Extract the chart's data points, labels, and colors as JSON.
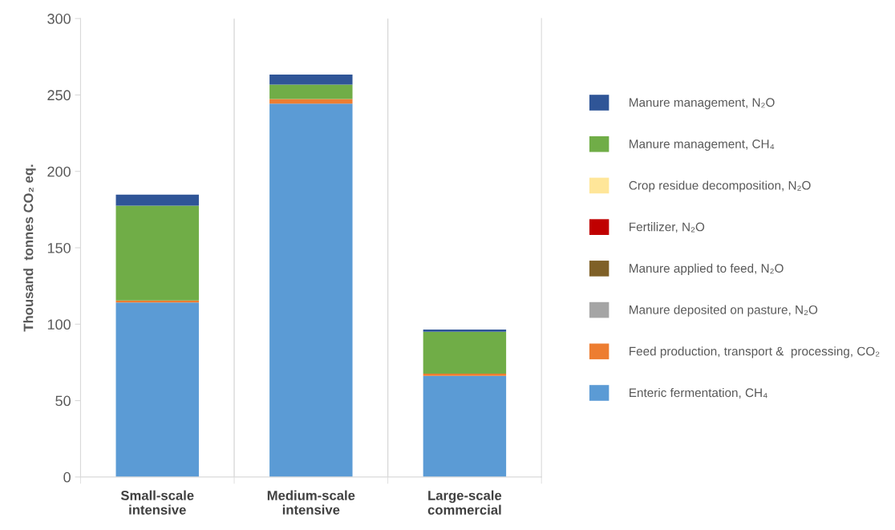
{
  "chart_data": {
    "type": "bar",
    "stacked": true,
    "ylabel": "Thousand  tonnes CO₂ eq.",
    "categories": [
      "Small-scale\nintensive",
      "Medium-scale\nintensive",
      "Large-scale\ncommercial"
    ],
    "series": [
      {
        "name": "Enteric fermentation, CH₄",
        "color": "#5b9bd5",
        "values": [
          114.2,
          244.3,
          66.2
        ]
      },
      {
        "name": "Feed production, transport &  processing, CO₂",
        "color": "#ed7d31",
        "values": [
          1.3,
          3.0,
          1.4
        ]
      },
      {
        "name": "Manure deposited on pasture, N₂O",
        "color": "#a5a5a5",
        "values": [
          0,
          0,
          0
        ]
      },
      {
        "name": "Manure applied to feed, N₂O",
        "color": "#7f6027",
        "values": [
          0,
          0,
          0
        ]
      },
      {
        "name": "Fertilizer, N₂O",
        "color": "#c00000",
        "values": [
          0,
          0,
          0
        ]
      },
      {
        "name": "Crop residue decomposition, N₂O",
        "color": "#ffe699",
        "values": [
          0,
          0,
          0
        ]
      },
      {
        "name": "Manure management, CH₄",
        "color": "#70ad47",
        "values": [
          62.1,
          9.5,
          27.5
        ]
      },
      {
        "name": "Manure management, N₂O",
        "color": "#2f5597",
        "values": [
          7.2,
          6.6,
          1.4
        ]
      }
    ],
    "ylim": [
      0,
      300
    ],
    "yticks": [
      0,
      50,
      100,
      150,
      200,
      250,
      300
    ],
    "grid": "x",
    "legend": "right"
  }
}
